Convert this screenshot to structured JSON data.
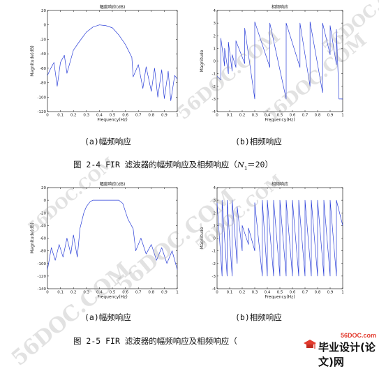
{
  "figures": [
    {
      "id": "fig-2-4",
      "caption_prefix": "图 2-4 FIR 滤波器的幅频响应及相频响应（",
      "caption_symbol": "N",
      "caption_subscript": "1",
      "caption_suffix": "＝20）",
      "sub_a": "(a)幅频响应",
      "sub_b": "(b)相频响应"
    },
    {
      "id": "fig-2-5",
      "caption_prefix": "图 2-5 FIR 滤波器的幅频响应及相频响应（",
      "sub_a": "(a)幅频响应",
      "sub_b": "(b)相频响应"
    }
  ],
  "chart_data": [
    {
      "type": "line",
      "title": "幅度响应(dB)",
      "xlabel": "Frequency(Hz)",
      "ylabel": "Magnitude(dB)",
      "xlim": [
        0,
        1
      ],
      "ylim": [
        -120,
        20
      ],
      "xticks": [
        0,
        0.1,
        0.2,
        0.3,
        0.4,
        0.5,
        0.6,
        0.7,
        0.8,
        0.9,
        1
      ],
      "yticks": [
        20,
        0,
        -20,
        -40,
        -60,
        -80,
        -100,
        -120
      ],
      "series": [
        {
          "x": [
            0,
            0.02,
            0.05,
            0.075,
            0.1,
            0.13,
            0.15,
            0.2,
            0.25,
            0.3,
            0.35,
            0.4,
            0.45,
            0.5,
            0.55,
            0.6,
            0.65,
            0.66,
            0.7,
            0.735,
            0.76,
            0.8,
            0.825,
            0.85,
            0.88,
            0.9,
            0.93,
            0.95,
            0.98,
            1
          ],
          "y": [
            -70,
            -62,
            -52,
            -85,
            -52,
            -42,
            -67,
            -35,
            -22,
            -10,
            -3,
            0,
            -1,
            -4,
            -14,
            -27,
            -45,
            -72,
            -55,
            -88,
            -58,
            -92,
            -60,
            -100,
            -62,
            -102,
            -64,
            -105,
            -70,
            -75
          ]
        }
      ]
    },
    {
      "type": "line",
      "title": "相频响应",
      "xlabel": "Frequency(Hz)",
      "ylabel": "Magnitude",
      "xlim": [
        0,
        1
      ],
      "ylim": [
        -4,
        4
      ],
      "xticks": [
        0,
        0.1,
        0.2,
        0.3,
        0.4,
        0.5,
        0.6,
        0.7,
        0.8,
        0.9,
        1
      ],
      "yticks": [
        4,
        3,
        2,
        1,
        0,
        -1,
        -2,
        -3,
        -4
      ],
      "series": [
        {
          "x": [
            0,
            0.03,
            0.03,
            0.06,
            0.06,
            0.09,
            0.09,
            0.12,
            0.12,
            0.15,
            0.15,
            0.22,
            0.22,
            0.3,
            0.3,
            0.42,
            0.42,
            0.55,
            0.55,
            0.66,
            0.66,
            0.74,
            0.74,
            0.84,
            0.84,
            0.9,
            0.9,
            0.95,
            0.95,
            0.97,
            0.97,
            1
          ],
          "y": [
            -1.2,
            -1.5,
            1.8,
            -0.4,
            1.0,
            -1.0,
            1.5,
            -0.8,
            0.5,
            -0.5,
            1.6,
            -0.2,
            2.6,
            -3.0,
            3.1,
            -0.5,
            3.0,
            -3.0,
            3.0,
            -0.5,
            3.0,
            -2.0,
            3.1,
            -2.5,
            3.0,
            0.5,
            2.8,
            -0.3,
            2.5,
            -2.8,
            -3.0,
            -3.0
          ]
        }
      ]
    },
    {
      "type": "line",
      "title": "幅度响应(dB)",
      "xlabel": "Frequency(Hz)",
      "ylabel": "Magnitude(dB)",
      "xlim": [
        0,
        1
      ],
      "ylim": [
        -140,
        20
      ],
      "xticks": [
        0,
        0.1,
        0.2,
        0.3,
        0.4,
        0.5,
        0.6,
        0.7,
        0.8,
        0.9,
        1
      ],
      "yticks": [
        20,
        0,
        -20,
        -40,
        -60,
        -80,
        -100,
        -120,
        -140
      ],
      "series": [
        {
          "x": [
            0,
            0.03,
            0.06,
            0.09,
            0.12,
            0.15,
            0.18,
            0.2,
            0.23,
            0.25,
            0.28,
            0.3,
            0.33,
            0.35,
            0.4,
            0.45,
            0.5,
            0.55,
            0.58,
            0.62,
            0.66,
            0.68,
            0.72,
            0.76,
            0.8,
            0.84,
            0.88,
            0.92,
            0.96,
            1
          ],
          "y": [
            -110,
            -75,
            -95,
            -70,
            -90,
            -60,
            -85,
            -55,
            -90,
            -45,
            -20,
            -10,
            -2,
            0,
            0,
            0,
            0,
            0,
            -5,
            -30,
            -45,
            -80,
            -60,
            -85,
            -70,
            -95,
            -75,
            -100,
            -80,
            -110
          ]
        }
      ]
    },
    {
      "type": "line",
      "title": "相频响应",
      "xlabel": "Frequency(Hz)",
      "ylabel": "Magnitude",
      "xlim": [
        0,
        1
      ],
      "ylim": [
        -4,
        4
      ],
      "xticks": [
        0,
        0.1,
        0.2,
        0.3,
        0.4,
        0.5,
        0.6,
        0.7,
        0.8,
        0.9,
        1
      ],
      "yticks": [
        4,
        3,
        2,
        1,
        0,
        -1,
        -2,
        -3,
        -4
      ],
      "series": [
        {
          "x": [
            0,
            0.04,
            0.04,
            0.08,
            0.08,
            0.12,
            0.12,
            0.16,
            0.16,
            0.2,
            0.2,
            0.25,
            0.25,
            0.3,
            0.3,
            0.36,
            0.36,
            0.4,
            0.4,
            0.45,
            0.45,
            0.5,
            0.5,
            0.55,
            0.55,
            0.6,
            0.6,
            0.65,
            0.65,
            0.7,
            0.7,
            0.75,
            0.75,
            0.8,
            0.8,
            0.85,
            0.85,
            0.9,
            0.9,
            0.95,
            0.95,
            1
          ],
          "y": [
            2.8,
            -3.0,
            3.0,
            -3.0,
            3.0,
            -3.0,
            3.0,
            -2.0,
            2.5,
            -1.0,
            1.0,
            -0.5,
            0.8,
            -1.0,
            2.8,
            -3.0,
            3.0,
            -3.0,
            3.0,
            -3.0,
            3.0,
            -3.0,
            3.0,
            -3.0,
            3.0,
            -3.0,
            3.0,
            -3.0,
            3.0,
            -3.0,
            3.0,
            -3.0,
            3.0,
            -3.0,
            3.0,
            -3.0,
            3.0,
            -3.0,
            3.0,
            -3.0,
            3.0,
            1.0
          ]
        }
      ]
    }
  ],
  "watermark": {
    "text": "56DOC.COM"
  },
  "logo": {
    "url": "56DOC.com",
    "text": "毕业设计(论文)网"
  },
  "colors": {
    "line": "#2b3fd8",
    "axis": "#000000",
    "watermark": "#969696",
    "logo_red": "#e23b2e"
  }
}
